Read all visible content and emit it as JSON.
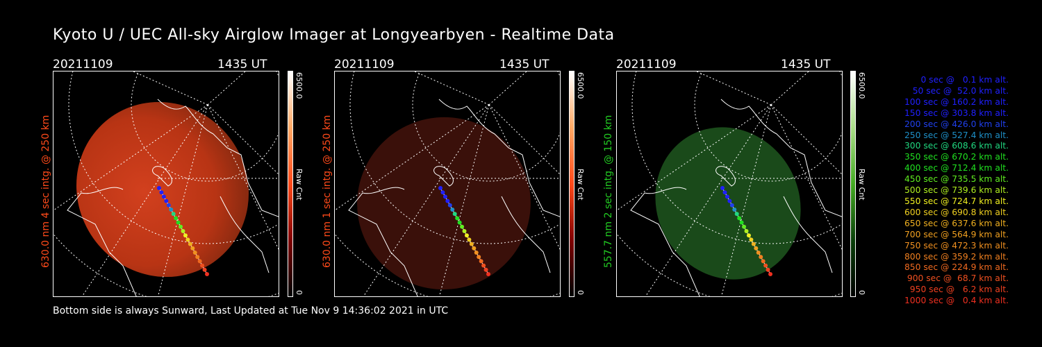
{
  "title": "Kyoto U / UEC All-sky Airglow Imager at Longyearbyen - Realtime Data",
  "footer": "Bottom side is always Sunward, Last Updated at Tue Nov  9 14:36:02 2021 in UTC",
  "colors": {
    "red": "#ff4a1a",
    "green": "#22cc22",
    "bg": "#000000"
  },
  "panels": [
    {
      "date": "20211109",
      "time": "1435 UT",
      "label": "630.0 nm 4 sec intg. @ 250 km",
      "label_color": "#ff4a1a",
      "colorbar_max": "6500.0",
      "colorbar_unit": "Raw Cnt",
      "colorbar_min": "0"
    },
    {
      "date": "20211109",
      "time": "1435 UT",
      "label": "630.0 nm 1 sec intg. @ 250 km",
      "label_color": "#ff4a1a",
      "colorbar_max": "6500.0",
      "colorbar_unit": "Raw Cnt",
      "colorbar_min": "0"
    },
    {
      "date": "20211109",
      "time": "1435 UT",
      "label": "557.7 nm 2 sec intg. @ 150 km",
      "label_color": "#22cc22",
      "colorbar_max": "6500.0",
      "colorbar_unit": "Raw Cnt",
      "colorbar_min": "0"
    }
  ],
  "legend": [
    {
      "text": "0 sec @   0.1 km alt.",
      "color": "#2020ff"
    },
    {
      "text": "50 sec @  52.0 km alt.",
      "color": "#2020ff"
    },
    {
      "text": "100 sec @ 160.2 km alt.",
      "color": "#2020ff"
    },
    {
      "text": "150 sec @ 303.8 km alt.",
      "color": "#2020ff"
    },
    {
      "text": "200 sec @ 426.0 km alt.",
      "color": "#2040ee"
    },
    {
      "text": "250 sec @ 527.4 km alt.",
      "color": "#1e90c8"
    },
    {
      "text": "300 sec @ 608.6 km alt.",
      "color": "#20d880"
    },
    {
      "text": "350 sec @ 670.2 km alt.",
      "color": "#20e020"
    },
    {
      "text": "400 sec @ 712.4 km alt.",
      "color": "#20e020"
    },
    {
      "text": "450 sec @ 735.5 km alt.",
      "color": "#60ee20"
    },
    {
      "text": "500 sec @ 739.6 km alt.",
      "color": "#b0f020"
    },
    {
      "text": "550 sec @ 724.7 km alt.",
      "color": "#f0f020"
    },
    {
      "text": "600 sec @ 690.8 km alt.",
      "color": "#f0d020"
    },
    {
      "text": "650 sec @ 637.6 km alt.",
      "color": "#f0b020"
    },
    {
      "text": "700 sec @ 564.9 km alt.",
      "color": "#f0a020"
    },
    {
      "text": "750 sec @ 472.3 km alt.",
      "color": "#f09020"
    },
    {
      "text": "800 sec @ 359.2 km alt.",
      "color": "#f08020"
    },
    {
      "text": "850 sec @ 224.9 km alt.",
      "color": "#f06a20"
    },
    {
      "text": "900 sec @  68.7 km alt.",
      "color": "#f05020"
    },
    {
      "text": "950 sec @   6.2 km alt.",
      "color": "#f04020"
    },
    {
      "text": "1000 sec @   0.4 km alt.",
      "color": "#f03020"
    }
  ]
}
